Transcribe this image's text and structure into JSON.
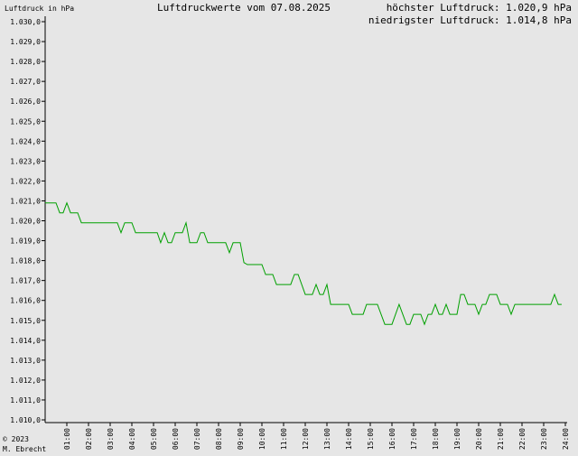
{
  "header": {
    "ylabel": "Luftdruck in hPa",
    "title": "Luftdruckwerte vom 07.08.2025",
    "max_text": "höchster Luftdruck: 1.020,9 hPa",
    "min_text": "niedrigster Luftdruck: 1.014,8 hPa"
  },
  "footer": {
    "copyright": "© 2023",
    "author": "M. Ebrecht"
  },
  "colors": {
    "background": "#e6e6e6",
    "line": "#00a000",
    "axis": "#000000"
  },
  "chart_data": {
    "type": "line",
    "title": "Luftdruckwerte vom 07.08.2025",
    "ylabel": "Luftdruck in hPa",
    "ylim": [
      1010,
      1030
    ],
    "xlim": [
      0,
      24
    ],
    "grid": false,
    "y_ticks": [
      1010,
      1011,
      1012,
      1013,
      1014,
      1015,
      1016,
      1017,
      1018,
      1019,
      1020,
      1021,
      1022,
      1023,
      1024,
      1025,
      1026,
      1027,
      1028,
      1029,
      1030
    ],
    "y_tick_labels": [
      "1.010,0",
      "1.011,0",
      "1.012,0",
      "1.013,0",
      "1.014,0",
      "1.015,0",
      "1.016,0",
      "1.017,0",
      "1.018,0",
      "1.019,0",
      "1.020,0",
      "1.021,0",
      "1.022,0",
      "1.023,0",
      "1.024,0",
      "1.025,0",
      "1.026,0",
      "1.027,0",
      "1.028,0",
      "1.029,0",
      "1.030,0"
    ],
    "x_ticks": [
      1,
      2,
      3,
      4,
      5,
      6,
      7,
      8,
      9,
      10,
      11,
      12,
      13,
      14,
      15,
      16,
      17,
      18,
      19,
      20,
      21,
      22,
      23,
      24
    ],
    "x_tick_labels": [
      "01:00",
      "02:00",
      "03:00",
      "04:00",
      "05:00",
      "06:00",
      "07:00",
      "08:00",
      "09:00",
      "10:00",
      "11:00",
      "12:00",
      "13:00",
      "14:00",
      "15:00",
      "16:00",
      "17:00",
      "18:00",
      "19:00",
      "20:00",
      "21:00",
      "22:00",
      "23:00",
      "24:00"
    ],
    "series": [
      {
        "points": [
          [
            0.0,
            1020.9
          ],
          [
            0.5,
            1020.9
          ],
          [
            0.67,
            1020.4
          ],
          [
            0.83,
            1020.4
          ],
          [
            1.0,
            1020.9
          ],
          [
            1.17,
            1020.4
          ],
          [
            1.5,
            1020.4
          ],
          [
            1.67,
            1019.9
          ],
          [
            2.0,
            1019.9
          ],
          [
            2.5,
            1019.9
          ],
          [
            3.0,
            1019.9
          ],
          [
            3.33,
            1019.9
          ],
          [
            3.5,
            1019.4
          ],
          [
            3.67,
            1019.9
          ],
          [
            4.0,
            1019.9
          ],
          [
            4.17,
            1019.4
          ],
          [
            4.5,
            1019.4
          ],
          [
            5.0,
            1019.4
          ],
          [
            5.17,
            1019.4
          ],
          [
            5.33,
            1018.9
          ],
          [
            5.5,
            1019.4
          ],
          [
            5.67,
            1018.9
          ],
          [
            5.83,
            1018.9
          ],
          [
            6.0,
            1019.4
          ],
          [
            6.33,
            1019.4
          ],
          [
            6.5,
            1019.9
          ],
          [
            6.67,
            1018.9
          ],
          [
            7.0,
            1018.9
          ],
          [
            7.17,
            1019.4
          ],
          [
            7.33,
            1019.4
          ],
          [
            7.5,
            1018.9
          ],
          [
            7.83,
            1018.9
          ],
          [
            8.17,
            1018.9
          ],
          [
            8.33,
            1018.9
          ],
          [
            8.5,
            1018.4
          ],
          [
            8.67,
            1018.9
          ],
          [
            9.0,
            1018.9
          ],
          [
            9.17,
            1017.9
          ],
          [
            9.33,
            1017.8
          ],
          [
            9.67,
            1017.8
          ],
          [
            10.0,
            1017.8
          ],
          [
            10.17,
            1017.3
          ],
          [
            10.5,
            1017.3
          ],
          [
            10.67,
            1016.8
          ],
          [
            11.0,
            1016.8
          ],
          [
            11.33,
            1016.8
          ],
          [
            11.5,
            1017.3
          ],
          [
            11.67,
            1017.3
          ],
          [
            12.0,
            1016.3
          ],
          [
            12.33,
            1016.3
          ],
          [
            12.5,
            1016.8
          ],
          [
            12.67,
            1016.3
          ],
          [
            12.83,
            1016.3
          ],
          [
            13.0,
            1016.8
          ],
          [
            13.17,
            1015.8
          ],
          [
            13.5,
            1015.8
          ],
          [
            14.0,
            1015.8
          ],
          [
            14.17,
            1015.3
          ],
          [
            14.67,
            1015.3
          ],
          [
            14.83,
            1015.8
          ],
          [
            15.33,
            1015.8
          ],
          [
            15.67,
            1014.8
          ],
          [
            16.0,
            1014.8
          ],
          [
            16.33,
            1015.8
          ],
          [
            16.67,
            1014.8
          ],
          [
            16.83,
            1014.8
          ],
          [
            17.0,
            1015.3
          ],
          [
            17.33,
            1015.3
          ],
          [
            17.5,
            1014.8
          ],
          [
            17.67,
            1015.3
          ],
          [
            17.83,
            1015.3
          ],
          [
            18.0,
            1015.8
          ],
          [
            18.17,
            1015.3
          ],
          [
            18.33,
            1015.3
          ],
          [
            18.5,
            1015.8
          ],
          [
            18.67,
            1015.3
          ],
          [
            19.0,
            1015.3
          ],
          [
            19.17,
            1016.3
          ],
          [
            19.33,
            1016.3
          ],
          [
            19.5,
            1015.8
          ],
          [
            19.83,
            1015.8
          ],
          [
            20.0,
            1015.3
          ],
          [
            20.17,
            1015.8
          ],
          [
            20.33,
            1015.8
          ],
          [
            20.5,
            1016.3
          ],
          [
            20.83,
            1016.3
          ],
          [
            21.0,
            1015.8
          ],
          [
            21.33,
            1015.8
          ],
          [
            21.5,
            1015.3
          ],
          [
            21.67,
            1015.8
          ],
          [
            22.0,
            1015.8
          ],
          [
            22.5,
            1015.8
          ],
          [
            23.0,
            1015.8
          ],
          [
            23.33,
            1015.8
          ],
          [
            23.5,
            1016.3
          ],
          [
            23.67,
            1015.8
          ],
          [
            23.83,
            1015.8
          ]
        ]
      }
    ]
  }
}
